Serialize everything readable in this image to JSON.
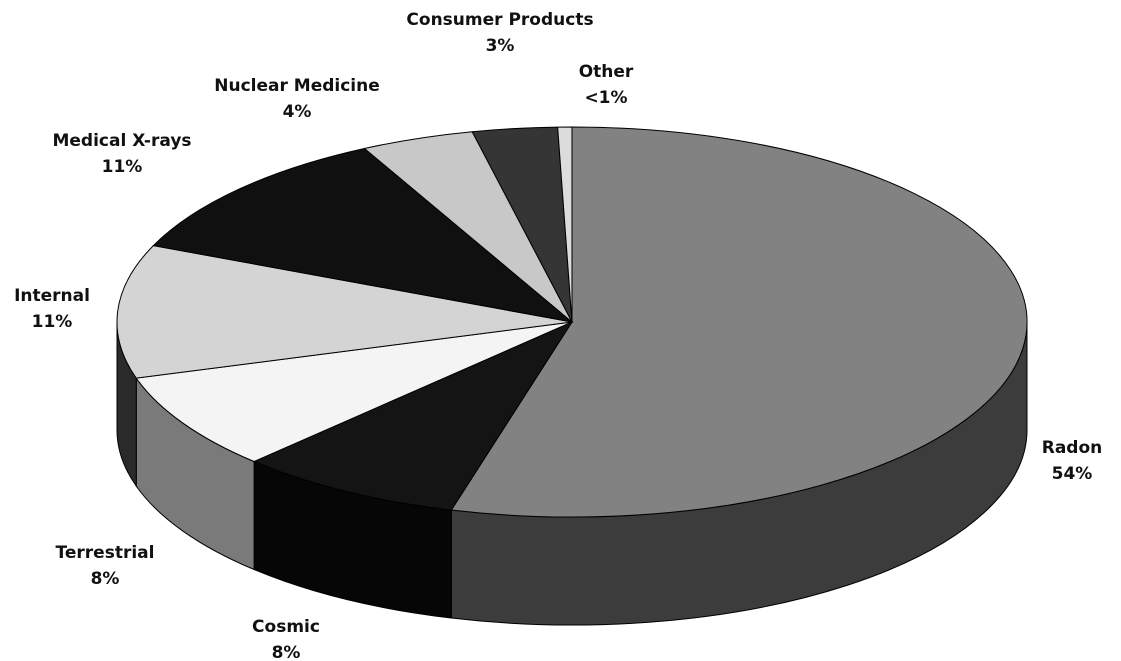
{
  "chart_data": {
    "type": "pie3d",
    "categories": [
      "Radon",
      "Cosmic",
      "Terrestrial",
      "Internal",
      "Medical X-rays",
      "Nuclear Medicine",
      "Consumer Products",
      "Other"
    ],
    "values": [
      54,
      8,
      8,
      11,
      11,
      4,
      3,
      0.5
    ],
    "value_labels": [
      "54%",
      "8%",
      "8%",
      "11%",
      "11%",
      "4%",
      "3%",
      "<1%"
    ],
    "colors": [
      "#828282",
      "#141414",
      "#f4f4f4",
      "#d4d4d4",
      "#101010",
      "#c8c8c8",
      "#353535",
      "#dcdcdc"
    ],
    "side_colors": [
      "#3c3c3c",
      "#060606",
      "#7a7a7a",
      "#2a2a2a",
      "#080808",
      "#5a5a5a",
      "#1a1a1a",
      "#666666"
    ]
  }
}
